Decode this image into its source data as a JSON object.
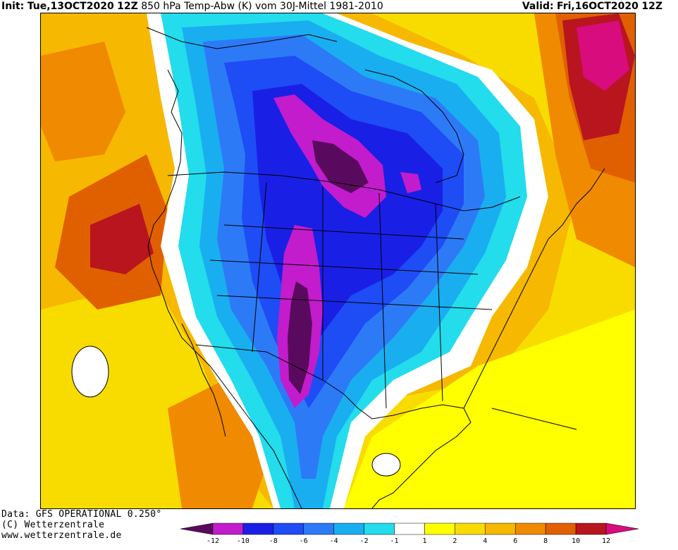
{
  "header": {
    "init_label": "Init:",
    "init_value": "Tue,13OCT2020",
    "init_hour": "12Z",
    "product": "850 hPa Temp-Abw (K) vom 30J-Mittel 1981-2010",
    "valid_label": "Valid:",
    "valid_value": "Fri,16OCT2020",
    "valid_hour": "12Z"
  },
  "footer": {
    "line1": "Data: GFS OPERATIONAL 0.250°",
    "line2": "(C) Wetterzentrale",
    "line3": "www.wetterzentrale.de"
  },
  "legend": {
    "bins": [
      {
        "color": "#5a0a5e"
      },
      {
        "color": "#c21ccc"
      },
      {
        "color": "#1a1fe6"
      },
      {
        "color": "#1e4cf5"
      },
      {
        "color": "#2d7af7"
      },
      {
        "color": "#19aef0"
      },
      {
        "color": "#23dcec"
      },
      {
        "color": "#ffffff"
      },
      {
        "color": "#ffff00"
      },
      {
        "color": "#f8dc00"
      },
      {
        "color": "#f6b800"
      },
      {
        "color": "#f08a00"
      },
      {
        "color": "#e06000"
      },
      {
        "color": "#b8151f"
      },
      {
        "color": "#d80c7c"
      }
    ],
    "ticks": [
      "-12",
      "-10",
      "-8",
      "-6",
      "-4",
      "-2",
      "-1",
      "1",
      "2",
      "4",
      "6",
      "8",
      "10",
      "12"
    ]
  },
  "map": {
    "palette": {
      "warm_yellow": "#ffff00",
      "warm_gold": "#f8dc00",
      "warm_amber": "#f6b800",
      "warm_orange": "#f08a00",
      "warm_dark_orange": "#e06000",
      "warm_red": "#b8151f",
      "warm_magenta": "#d80c7c",
      "neutral": "#ffffff",
      "cold_cyan": "#23dcec",
      "cold_sky": "#19aef0",
      "cold_blue": "#2d7af7",
      "cold_royal": "#1e4cf5",
      "cold_deep": "#1a1fe6",
      "cold_violet": "#c21ccc",
      "cold_purple": "#5a0a5e"
    }
  }
}
